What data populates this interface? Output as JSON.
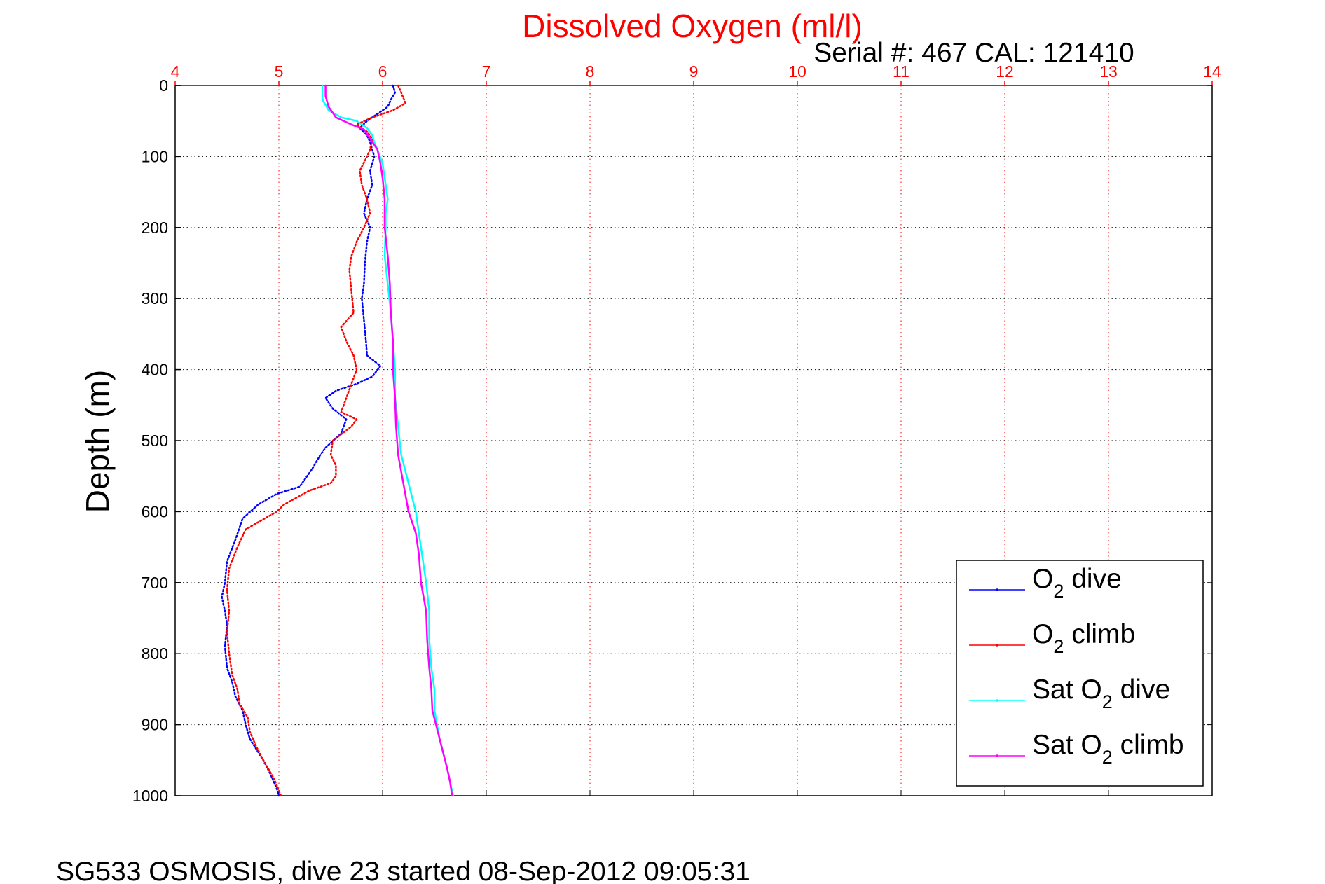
{
  "chart_data": {
    "type": "line",
    "title": "Dissolved Oxygen (ml/l)",
    "subtitle": "Serial #: 467  CAL: 121410",
    "xlabel": "",
    "ylabel": "Depth (m)",
    "caption": "SG533 OSMOSIS, dive 23 started 08-Sep-2012 09:05:31",
    "xlim": [
      4,
      14
    ],
    "ylim": [
      0,
      1000
    ],
    "y_reversed": true,
    "x_axis_position": "top",
    "xticks": [
      "4",
      "5",
      "6",
      "7",
      "8",
      "9",
      "10",
      "11",
      "12",
      "13",
      "14"
    ],
    "yticks": [
      "0",
      "100",
      "200",
      "300",
      "400",
      "500",
      "600",
      "700",
      "800",
      "900",
      "1000"
    ],
    "grid": true,
    "legend_position": "bottom-right",
    "series": [
      {
        "name": "O2 dive",
        "label_main": "O",
        "label_sub": "2",
        "label_rest": " dive",
        "color": "#0000ff",
        "style": "dotted",
        "points": [
          [
            6.1,
            0
          ],
          [
            6.12,
            10
          ],
          [
            6.08,
            20
          ],
          [
            6.05,
            30
          ],
          [
            5.95,
            40
          ],
          [
            5.85,
            50
          ],
          [
            5.78,
            60
          ],
          [
            5.85,
            70
          ],
          [
            5.88,
            80
          ],
          [
            5.9,
            90
          ],
          [
            5.92,
            100
          ],
          [
            5.88,
            120
          ],
          [
            5.9,
            140
          ],
          [
            5.85,
            160
          ],
          [
            5.82,
            180
          ],
          [
            5.88,
            200
          ],
          [
            5.85,
            220
          ],
          [
            5.83,
            250
          ],
          [
            5.82,
            280
          ],
          [
            5.8,
            300
          ],
          [
            5.82,
            330
          ],
          [
            5.84,
            360
          ],
          [
            5.85,
            380
          ],
          [
            5.98,
            395
          ],
          [
            5.9,
            410
          ],
          [
            5.75,
            420
          ],
          [
            5.55,
            430
          ],
          [
            5.45,
            440
          ],
          [
            5.52,
            455
          ],
          [
            5.65,
            470
          ],
          [
            5.6,
            490
          ],
          [
            5.45,
            510
          ],
          [
            5.4,
            520
          ],
          [
            5.32,
            540
          ],
          [
            5.2,
            565
          ],
          [
            4.98,
            575
          ],
          [
            4.8,
            590
          ],
          [
            4.65,
            610
          ],
          [
            4.58,
            640
          ],
          [
            4.5,
            670
          ],
          [
            4.48,
            700
          ],
          [
            4.45,
            720
          ],
          [
            4.48,
            740
          ],
          [
            4.5,
            760
          ],
          [
            4.48,
            790
          ],
          [
            4.5,
            820
          ],
          [
            4.55,
            840
          ],
          [
            4.58,
            860
          ],
          [
            4.65,
            880
          ],
          [
            4.68,
            900
          ],
          [
            4.72,
            920
          ],
          [
            4.85,
            950
          ],
          [
            4.92,
            970
          ],
          [
            4.98,
            990
          ],
          [
            5.0,
            1000
          ]
        ]
      },
      {
        "name": "O2 climb",
        "label_main": "O",
        "label_sub": "2",
        "label_rest": " climb",
        "color": "#ff0000",
        "style": "dotted",
        "points": [
          [
            6.15,
            0
          ],
          [
            6.18,
            10
          ],
          [
            6.22,
            25
          ],
          [
            6.1,
            35
          ],
          [
            5.9,
            45
          ],
          [
            5.75,
            55
          ],
          [
            5.85,
            65
          ],
          [
            5.9,
            75
          ],
          [
            5.88,
            90
          ],
          [
            5.85,
            100
          ],
          [
            5.78,
            120
          ],
          [
            5.8,
            140
          ],
          [
            5.85,
            160
          ],
          [
            5.88,
            180
          ],
          [
            5.82,
            200
          ],
          [
            5.75,
            220
          ],
          [
            5.7,
            240
          ],
          [
            5.68,
            260
          ],
          [
            5.7,
            290
          ],
          [
            5.72,
            320
          ],
          [
            5.6,
            340
          ],
          [
            5.65,
            360
          ],
          [
            5.72,
            380
          ],
          [
            5.75,
            400
          ],
          [
            5.7,
            420
          ],
          [
            5.65,
            440
          ],
          [
            5.6,
            460
          ],
          [
            5.75,
            470
          ],
          [
            5.7,
            480
          ],
          [
            5.52,
            500
          ],
          [
            5.5,
            520
          ],
          [
            5.55,
            535
          ],
          [
            5.55,
            550
          ],
          [
            5.5,
            560
          ],
          [
            5.3,
            570
          ],
          [
            5.05,
            590
          ],
          [
            4.98,
            600
          ],
          [
            4.8,
            615
          ],
          [
            4.68,
            625
          ],
          [
            4.6,
            650
          ],
          [
            4.52,
            680
          ],
          [
            4.5,
            710
          ],
          [
            4.52,
            740
          ],
          [
            4.5,
            770
          ],
          [
            4.52,
            800
          ],
          [
            4.55,
            830
          ],
          [
            4.6,
            850
          ],
          [
            4.62,
            870
          ],
          [
            4.7,
            890
          ],
          [
            4.72,
            910
          ],
          [
            4.78,
            930
          ],
          [
            4.85,
            950
          ],
          [
            4.95,
            975
          ],
          [
            5.02,
            1000
          ]
        ]
      },
      {
        "name": "Sat O2 dive",
        "label_main": "Sat O",
        "label_sub": "2",
        "label_rest": " dive",
        "color": "#00ffff",
        "style": "solid",
        "points": [
          [
            5.42,
            0
          ],
          [
            5.42,
            20
          ],
          [
            5.48,
            35
          ],
          [
            5.6,
            45
          ],
          [
            5.75,
            50
          ],
          [
            5.85,
            60
          ],
          [
            5.9,
            70
          ],
          [
            5.92,
            80
          ],
          [
            5.95,
            90
          ],
          [
            6.0,
            110
          ],
          [
            6.02,
            130
          ],
          [
            6.05,
            160
          ],
          [
            6.03,
            180
          ],
          [
            6.03,
            200
          ],
          [
            6.02,
            240
          ],
          [
            6.05,
            280
          ],
          [
            6.08,
            320
          ],
          [
            6.1,
            360
          ],
          [
            6.12,
            400
          ],
          [
            6.12,
            440
          ],
          [
            6.15,
            480
          ],
          [
            6.18,
            520
          ],
          [
            6.25,
            560
          ],
          [
            6.32,
            600
          ],
          [
            6.35,
            630
          ],
          [
            6.38,
            660
          ],
          [
            6.42,
            700
          ],
          [
            6.45,
            740
          ],
          [
            6.45,
            780
          ],
          [
            6.47,
            820
          ],
          [
            6.5,
            850
          ],
          [
            6.5,
            880
          ],
          [
            6.55,
            920
          ],
          [
            6.62,
            960
          ],
          [
            6.68,
            1000
          ]
        ]
      },
      {
        "name": "Sat O2 climb",
        "label_main": "Sat O",
        "label_sub": "2",
        "label_rest": " climb",
        "color": "#ff00ff",
        "style": "solid",
        "points": [
          [
            5.45,
            0
          ],
          [
            5.45,
            15
          ],
          [
            5.48,
            30
          ],
          [
            5.55,
            45
          ],
          [
            5.7,
            55
          ],
          [
            5.82,
            62
          ],
          [
            5.88,
            75
          ],
          [
            5.95,
            90
          ],
          [
            5.98,
            110
          ],
          [
            6.0,
            130
          ],
          [
            6.02,
            160
          ],
          [
            6.02,
            200
          ],
          [
            6.05,
            240
          ],
          [
            6.07,
            280
          ],
          [
            6.08,
            320
          ],
          [
            6.1,
            360
          ],
          [
            6.1,
            400
          ],
          [
            6.12,
            440
          ],
          [
            6.13,
            480
          ],
          [
            6.15,
            520
          ],
          [
            6.2,
            560
          ],
          [
            6.25,
            600
          ],
          [
            6.32,
            630
          ],
          [
            6.35,
            660
          ],
          [
            6.37,
            700
          ],
          [
            6.42,
            740
          ],
          [
            6.43,
            780
          ],
          [
            6.45,
            820
          ],
          [
            6.47,
            850
          ],
          [
            6.48,
            880
          ],
          [
            6.55,
            920
          ],
          [
            6.62,
            960
          ],
          [
            6.65,
            980
          ],
          [
            6.67,
            1000
          ]
        ]
      }
    ]
  }
}
